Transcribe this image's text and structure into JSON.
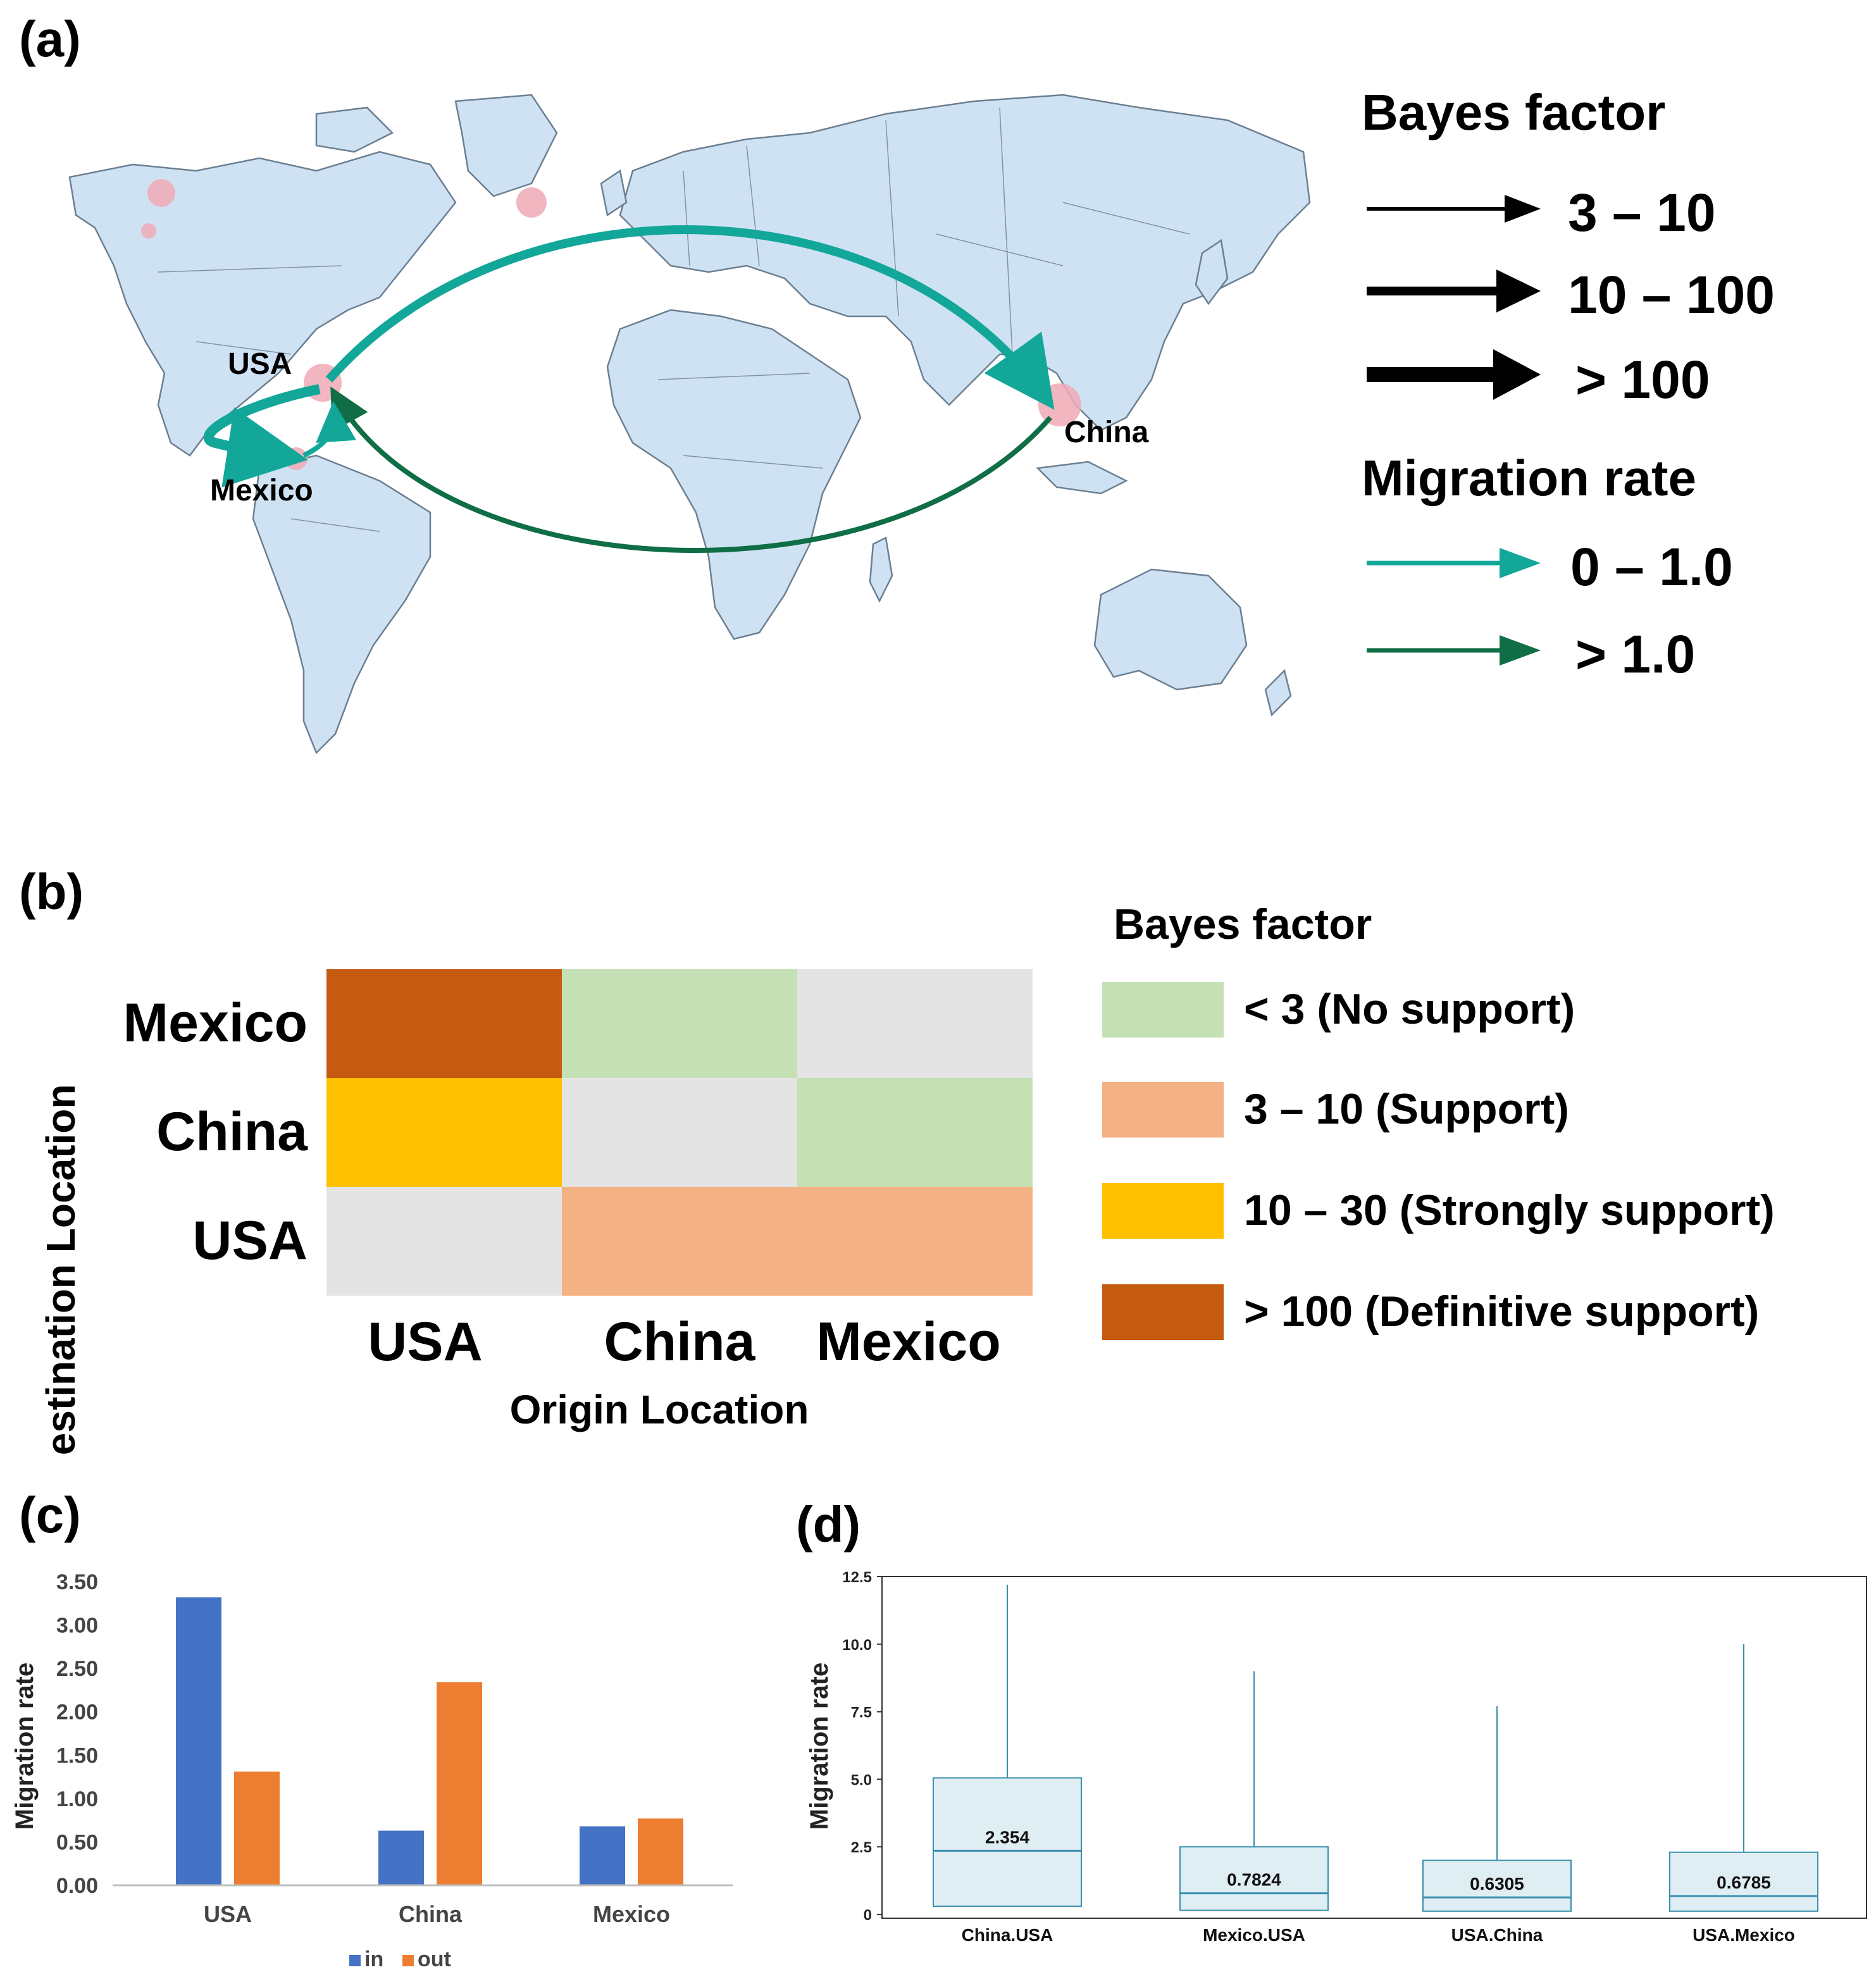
{
  "panels": {
    "a": "(a)",
    "b": "(b)",
    "c": "(c)",
    "d": "(d)"
  },
  "colors": {
    "land": "#cfe2f3",
    "border": "#6b7f91",
    "cyan": "#13a79a",
    "dark_green": "#0f6e45",
    "node": "#f0a9b6",
    "bar_in": "#4472c4",
    "bar_out": "#ed7d31",
    "no_support": "#c5e0b4",
    "support": "#f4b183",
    "strong": "#ffc000",
    "definitive": "#c55a11",
    "diagonal": "#e4e4e4",
    "box_fill": "#dfeef3",
    "box_line": "#3a8fae"
  },
  "map": {
    "locations": [
      "USA",
      "Mexico",
      "China"
    ],
    "legend": {
      "bayes_title": "Bayes factor",
      "bayes_items": [
        "3 – 10",
        "10 – 100",
        "> 100"
      ],
      "migration_title": "Migration rate",
      "migration_items": [
        "0 – 1.0",
        "> 1.0"
      ]
    }
  },
  "chart_data": [
    {
      "type": "heatmap",
      "panel": "b",
      "xlabel": "Origin Location",
      "ylabel": "Destination  Location",
      "x_categories": [
        "USA",
        "China",
        "Mexico"
      ],
      "y_categories": [
        "Mexico",
        "China",
        "USA"
      ],
      "cells": [
        [
          "> 100 (Definitive support)",
          "< 3 (No support)",
          "diagonal"
        ],
        [
          "10 – 30 (Strongly support)",
          "diagonal",
          "< 3 (No support)"
        ],
        [
          "diagonal",
          "3 – 10 (Support)",
          "3 – 10 (Support)"
        ]
      ],
      "legend_title": "Bayes factor",
      "legend": [
        "< 3 (No support)",
        "3 – 10 (Support)",
        "10 – 30 (Strongly support)",
        "> 100 (Definitive support)"
      ]
    },
    {
      "type": "bar",
      "panel": "c",
      "categories": [
        "USA",
        "China",
        "Mexico"
      ],
      "series": [
        {
          "name": "in",
          "values": [
            3.32,
            0.63,
            0.68
          ]
        },
        {
          "name": "out",
          "values": [
            1.31,
            2.34,
            0.77
          ]
        }
      ],
      "ylabel": "Migration  rate",
      "ylim": [
        0,
        3.5
      ],
      "yticks": [
        "0.00",
        "0.50",
        "1.00",
        "1.50",
        "2.00",
        "2.50",
        "3.00",
        "3.50"
      ],
      "legend_position": "bottom"
    },
    {
      "type": "box",
      "panel": "d",
      "categories": [
        "China.USA",
        "Mexico.USA",
        "USA.China",
        "USA.Mexico"
      ],
      "median_labels": [
        "2.354",
        "0.7824",
        "0.6305",
        "0.6785"
      ],
      "boxes": [
        {
          "min": 0,
          "q1": 0.3,
          "median": 2.354,
          "q3": 5.05,
          "max": 12.2
        },
        {
          "min": 0,
          "q1": 0.15,
          "median": 0.7824,
          "q3": 2.5,
          "max": 9.0
        },
        {
          "min": 0,
          "q1": 0.12,
          "median": 0.6305,
          "q3": 2.0,
          "max": 7.7
        },
        {
          "min": 0,
          "q1": 0.12,
          "median": 0.6785,
          "q3": 2.3,
          "max": 10.0
        }
      ],
      "ylabel": "Migration  rate",
      "ylim": [
        0,
        12.5
      ],
      "yticks": [
        "0",
        "2.5",
        "5.0",
        "7.5",
        "10.0",
        "12.5"
      ]
    }
  ]
}
